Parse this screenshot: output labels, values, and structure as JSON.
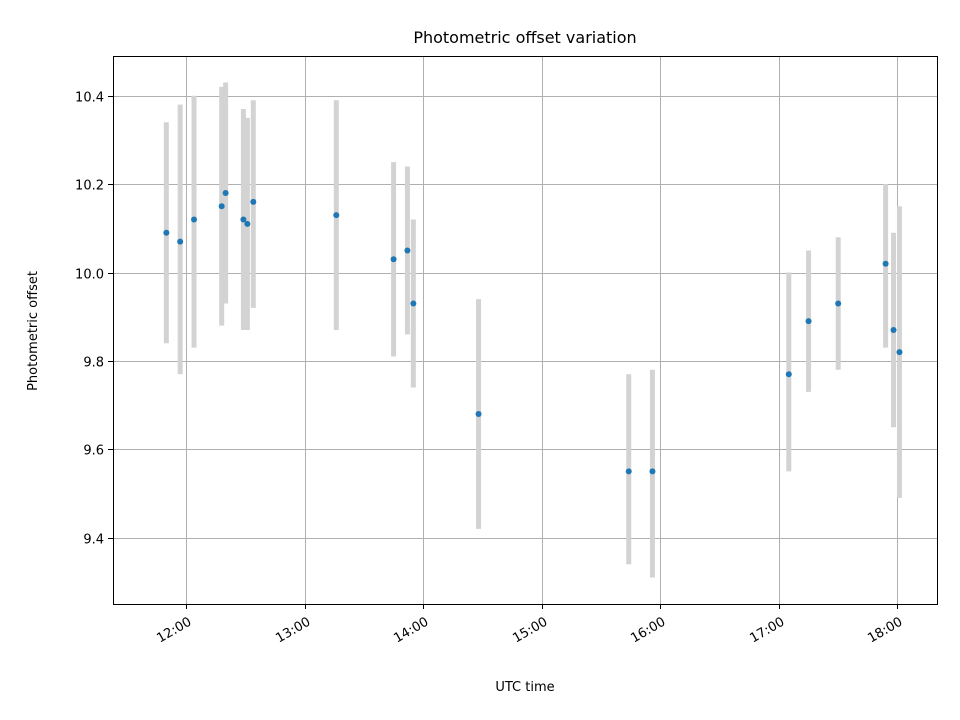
{
  "chart_data": {
    "type": "scatter",
    "title": "Photometric offset variation",
    "xlabel": "UTC time",
    "ylabel": "Photometric offset",
    "x_ticks": [
      "12:00",
      "13:00",
      "14:00",
      "15:00",
      "16:00",
      "17:00",
      "18:00"
    ],
    "y_ticks": [
      "9.4",
      "9.6",
      "9.8",
      "10.0",
      "10.2",
      "10.4"
    ],
    "xlim": [
      "11:23",
      "18:20"
    ],
    "ylim": [
      9.25,
      10.49
    ],
    "grid": true,
    "colors": {
      "point": "#1f77b4",
      "errorbar": "#d3d3d3"
    },
    "points": [
      {
        "x": "11:50",
        "y": 10.09,
        "low": 9.84,
        "high": 10.34
      },
      {
        "x": "11:57",
        "y": 10.07,
        "low": 9.77,
        "high": 10.38
      },
      {
        "x": "12:04",
        "y": 10.12,
        "low": 9.83,
        "high": 10.4
      },
      {
        "x": "12:18",
        "y": 10.15,
        "low": 9.88,
        "high": 10.42
      },
      {
        "x": "12:20",
        "y": 10.18,
        "low": 9.93,
        "high": 10.43
      },
      {
        "x": "12:29",
        "y": 10.12,
        "low": 9.87,
        "high": 10.37
      },
      {
        "x": "12:31",
        "y": 10.11,
        "low": 9.87,
        "high": 10.35
      },
      {
        "x": "12:34",
        "y": 10.16,
        "low": 9.92,
        "high": 10.39
      },
      {
        "x": "13:16",
        "y": 10.13,
        "low": 9.87,
        "high": 10.39
      },
      {
        "x": "13:45",
        "y": 10.03,
        "low": 9.81,
        "high": 10.25
      },
      {
        "x": "13:52",
        "y": 10.05,
        "low": 9.86,
        "high": 10.24
      },
      {
        "x": "13:55",
        "y": 9.93,
        "low": 9.74,
        "high": 10.12
      },
      {
        "x": "14:28",
        "y": 9.68,
        "low": 9.42,
        "high": 9.94
      },
      {
        "x": "15:44",
        "y": 9.55,
        "low": 9.34,
        "high": 9.77
      },
      {
        "x": "15:56",
        "y": 9.55,
        "low": 9.31,
        "high": 9.78
      },
      {
        "x": "17:05",
        "y": 9.77,
        "low": 9.55,
        "high": 10.0
      },
      {
        "x": "17:15",
        "y": 9.89,
        "low": 9.73,
        "high": 10.05
      },
      {
        "x": "17:30",
        "y": 9.93,
        "low": 9.78,
        "high": 10.08
      },
      {
        "x": "17:54",
        "y": 10.02,
        "low": 9.83,
        "high": 10.2
      },
      {
        "x": "17:58",
        "y": 9.87,
        "low": 9.65,
        "high": 10.09
      },
      {
        "x": "18:01",
        "y": 9.82,
        "low": 9.49,
        "high": 10.15
      }
    ]
  }
}
